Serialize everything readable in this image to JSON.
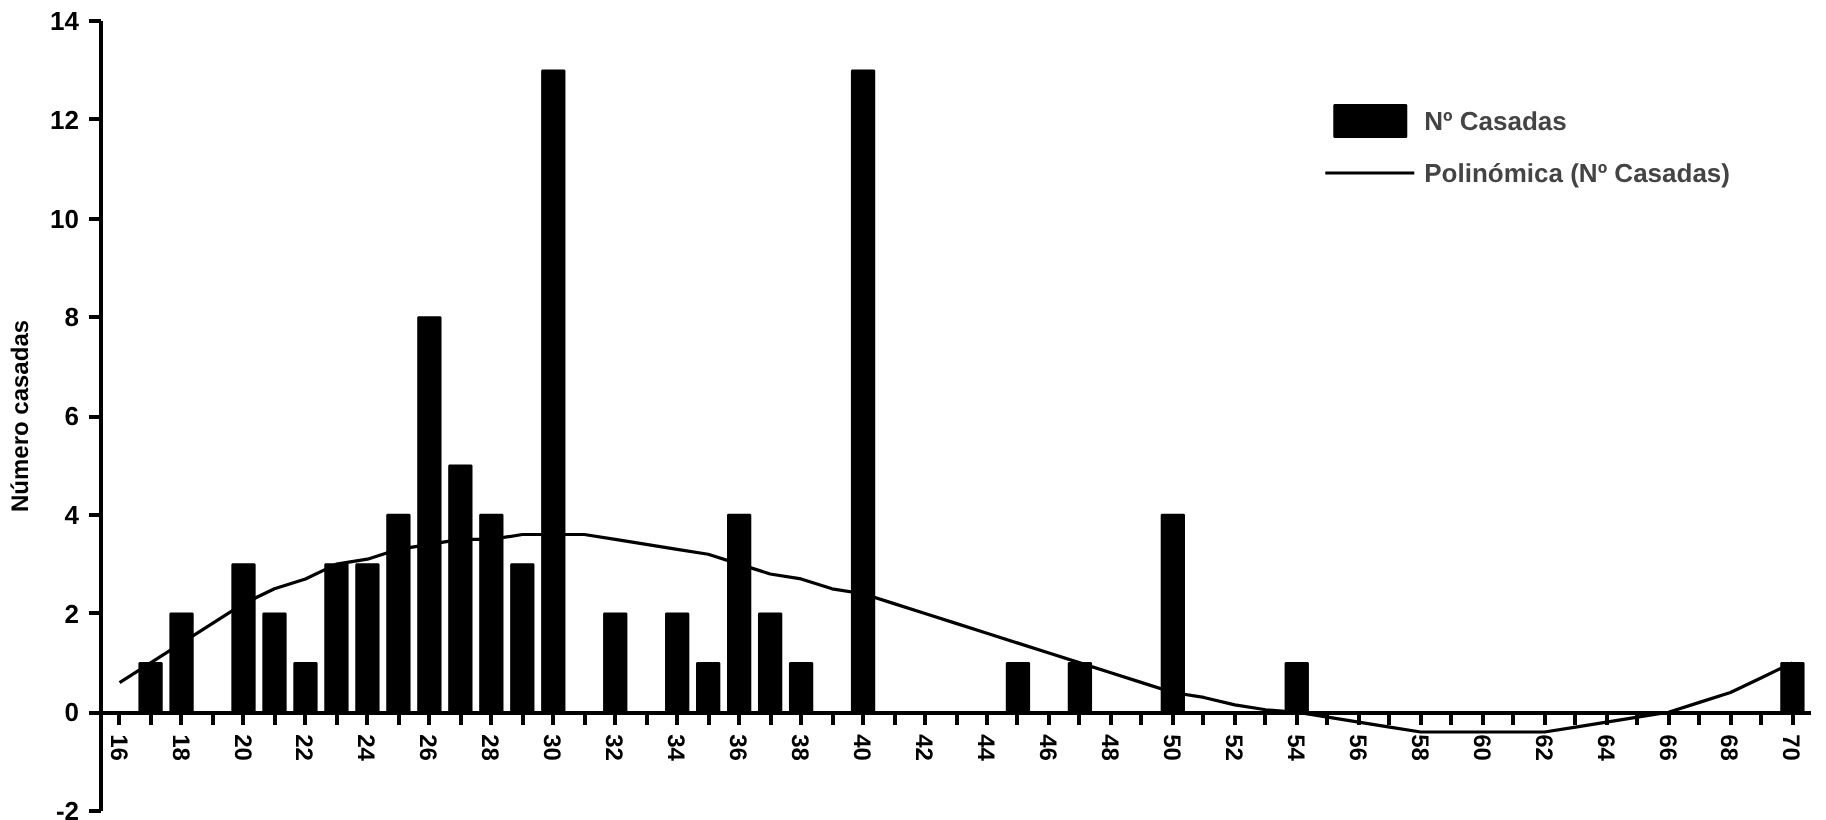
{
  "chart_data": {
    "type": "bar",
    "ylabel": "Número casadas",
    "categories": [
      "16",
      null,
      "18",
      null,
      "20",
      null,
      "22",
      null,
      "24",
      null,
      "26",
      null,
      "28",
      null,
      "30",
      null,
      "32",
      null,
      "34",
      null,
      "36",
      null,
      "38",
      null,
      "40",
      null,
      "42",
      null,
      "44",
      null,
      "46",
      null,
      "48",
      null,
      "50",
      null,
      "52",
      null,
      "54",
      null,
      "56",
      null,
      "58",
      null,
      "60",
      null,
      "62",
      null,
      "64",
      null,
      "66",
      null,
      "68",
      null,
      "70"
    ],
    "series": [
      {
        "name": "Nº Casadas",
        "color": "#000000",
        "values": [
          0,
          1,
          2,
          0,
          3,
          2,
          1,
          3,
          3,
          4,
          8,
          5,
          4,
          3,
          13,
          0,
          2,
          0,
          2,
          1,
          4,
          2,
          1,
          0,
          13,
          0,
          0,
          0,
          0,
          1,
          0,
          1,
          0,
          0,
          4,
          0,
          0,
          0,
          1,
          0,
          0,
          0,
          0,
          0,
          0,
          0,
          0,
          0,
          0,
          0,
          0,
          0,
          0,
          0,
          1
        ]
      },
      {
        "name": "Polinómica (Nº Casadas)",
        "type": "line",
        "color": "#000000",
        "values": [
          0.6,
          1.0,
          1.4,
          1.8,
          2.2,
          2.5,
          2.7,
          3.0,
          3.1,
          3.3,
          3.4,
          3.5,
          3.5,
          3.6,
          3.6,
          3.6,
          3.5,
          3.4,
          3.3,
          3.2,
          3.0,
          2.8,
          2.7,
          2.5,
          2.4,
          2.2,
          2.0,
          1.8,
          1.6,
          1.4,
          1.2,
          1.0,
          0.8,
          0.6,
          0.4,
          0.3,
          0.15,
          0.05,
          0,
          -0.1,
          -0.2,
          -0.3,
          -0.4,
          -0.4,
          -0.4,
          -0.4,
          -0.4,
          -0.3,
          -0.2,
          -0.1,
          0,
          0.2,
          0.4,
          0.7,
          1.0
        ]
      }
    ],
    "ylim": [
      -2,
      14
    ],
    "yticks": [
      -2,
      0,
      2,
      4,
      6,
      8,
      10,
      12,
      14
    ],
    "grid": false,
    "legend": "top right",
    "line_style": "solid"
  }
}
